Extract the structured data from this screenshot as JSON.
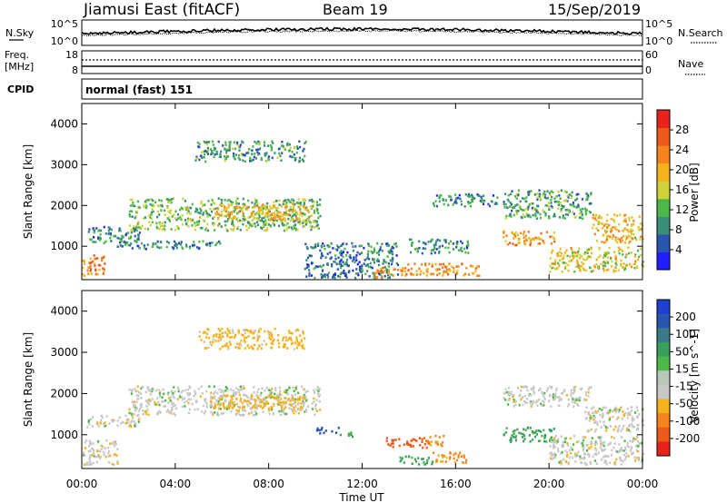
{
  "header": {
    "station": "Jiamusi East (fitACF)",
    "beam": "Beam 19",
    "date": "15/Sep/2019"
  },
  "noise_panel": {
    "left_label": "N.Sky",
    "left_ticks": [
      "10^5",
      "10^0"
    ],
    "right_ticks": [
      "10^5",
      "10^0"
    ],
    "right_label": "N.Search"
  },
  "freq_panel": {
    "left_label_line1": "Freq.",
    "left_label_line2": "[MHz]",
    "left_ticks": [
      "18",
      "8"
    ],
    "right_ticks": [
      "60",
      "0"
    ],
    "right_label": "Nave",
    "cpid_label": "CPID",
    "cpid_text": "normal (fast) 151"
  },
  "power_colorbar": {
    "title": "Power [dB]",
    "ticks": [
      "4",
      "8",
      "12",
      "16",
      "20",
      "24",
      "28"
    ],
    "colors": [
      "#1f1fff",
      "#2a55b0",
      "#3a8f7a",
      "#4db848",
      "#cfd23a",
      "#f4b21c",
      "#f4841b",
      "#ee5a1c",
      "#e8231b"
    ]
  },
  "velocity_colorbar": {
    "title": "Velocity [m s^-1]",
    "ticks": [
      "-200",
      "-100",
      "-50",
      "-15",
      "15",
      "50",
      "100",
      "200"
    ],
    "colors": [
      "#e8231b",
      "#ee5a1c",
      "#f4841b",
      "#f4b21c",
      "#c8c8c8",
      "#b8c8b8",
      "#4db848",
      "#3a9e5c",
      "#3a7a8a",
      "#2a55b0",
      "#1f3fd0"
    ]
  },
  "axes": {
    "ylabel": "Slant Range [km]",
    "xlabel": "Time UT",
    "yticks": [
      "1000",
      "2000",
      "3000",
      "4000"
    ],
    "xticks": [
      "00:00",
      "04:00",
      "08:00",
      "12:00",
      "16:00",
      "20:00",
      "00:00"
    ]
  },
  "chart_data": [
    {
      "type": "heatmap",
      "panel": "power",
      "x_unit": "hours UT",
      "ylim": [
        180,
        4500
      ],
      "xlim": [
        0,
        24
      ],
      "colorbar_range": [
        0,
        30
      ],
      "regions": [
        {
          "t0": 0.0,
          "t1": 1.0,
          "r0": 300,
          "r1": 800,
          "value": 22
        },
        {
          "t0": 0.2,
          "t1": 2.5,
          "r0": 1100,
          "r1": 1500,
          "value": 8
        },
        {
          "t0": 2.0,
          "t1": 10.2,
          "r0": 1400,
          "r1": 2200,
          "value": 12
        },
        {
          "t0": 5.6,
          "t1": 9.8,
          "r0": 1650,
          "r1": 2050,
          "value": 18
        },
        {
          "t0": 4.8,
          "t1": 9.6,
          "r0": 3100,
          "r1": 3600,
          "value": 9
        },
        {
          "t0": 1.5,
          "t1": 6.0,
          "r0": 950,
          "r1": 1150,
          "value": 8
        },
        {
          "t0": 9.5,
          "t1": 13.5,
          "r0": 250,
          "r1": 1100,
          "value": 7
        },
        {
          "t0": 12.5,
          "t1": 13.7,
          "r0": 250,
          "r1": 500,
          "value": 22
        },
        {
          "t0": 13.5,
          "t1": 17.0,
          "r0": 300,
          "r1": 600,
          "value": 20
        },
        {
          "t0": 14.0,
          "t1": 16.5,
          "r0": 850,
          "r1": 1200,
          "value": 8
        },
        {
          "t0": 15.0,
          "t1": 17.8,
          "r0": 2000,
          "r1": 2300,
          "value": 8
        },
        {
          "t0": 18.0,
          "t1": 20.2,
          "r0": 1050,
          "r1": 1400,
          "value": 20
        },
        {
          "t0": 18.0,
          "t1": 21.8,
          "r0": 1700,
          "r1": 2400,
          "value": 10
        },
        {
          "t0": 20.0,
          "t1": 24.0,
          "r0": 400,
          "r1": 1000,
          "value": 16
        },
        {
          "t0": 21.8,
          "t1": 24.0,
          "r0": 1100,
          "r1": 1800,
          "value": 18
        }
      ]
    },
    {
      "type": "heatmap",
      "panel": "velocity",
      "x_unit": "hours UT",
      "ylim": [
        180,
        4500
      ],
      "xlim": [
        0,
        24
      ],
      "colorbar_range": [
        -250,
        250
      ],
      "regions": [
        {
          "t0": 0.0,
          "t1": 1.5,
          "r0": 300,
          "r1": 900,
          "value": 0
        },
        {
          "t0": 0.2,
          "t1": 2.5,
          "r0": 1200,
          "r1": 1500,
          "value": 0
        },
        {
          "t0": 2.0,
          "t1": 10.2,
          "r0": 1500,
          "r1": 2200,
          "value": 0
        },
        {
          "t0": 5.5,
          "t1": 9.5,
          "r0": 1650,
          "r1": 2000,
          "value": -30
        },
        {
          "t0": 5.0,
          "t1": 9.5,
          "r0": 3100,
          "r1": 3600,
          "value": -30
        },
        {
          "t0": 10.0,
          "t1": 11.0,
          "r0": 1050,
          "r1": 1200,
          "value": 150
        },
        {
          "t0": 11.0,
          "t1": 11.6,
          "r0": 950,
          "r1": 1100,
          "value": 60
        },
        {
          "t0": 13.0,
          "t1": 14.8,
          "r0": 700,
          "r1": 950,
          "value": -120
        },
        {
          "t0": 14.6,
          "t1": 15.5,
          "r0": 750,
          "r1": 1000,
          "value": -60
        },
        {
          "t0": 15.0,
          "t1": 16.5,
          "r0": 350,
          "r1": 600,
          "value": -60
        },
        {
          "t0": 13.5,
          "t1": 15.0,
          "r0": 300,
          "r1": 500,
          "value": 60
        },
        {
          "t0": 18.0,
          "t1": 20.2,
          "r0": 850,
          "r1": 1200,
          "value": 60
        },
        {
          "t0": 18.0,
          "t1": 21.8,
          "r0": 1700,
          "r1": 2200,
          "value": 0
        },
        {
          "t0": 20.0,
          "t1": 24.0,
          "r0": 300,
          "r1": 1000,
          "value": 0
        },
        {
          "t0": 21.5,
          "t1": 24.0,
          "r0": 1100,
          "r1": 1700,
          "value": 0
        }
      ]
    }
  ]
}
